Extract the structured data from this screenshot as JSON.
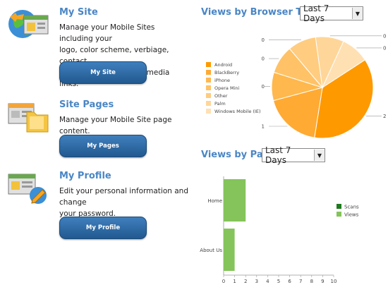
{
  "sections": [
    {
      "title": "My Site",
      "desc_lines": [
        "Manage your Mobile Sites including your",
        "logo, color scheme, verbiage, contact",
        "information, and social media links."
      ],
      "button": "My Site"
    },
    {
      "title": "Site Pages",
      "desc_lines": [
        "Manage your Mobile Site page content."
      ],
      "button": "My Pages"
    },
    {
      "title": "My Profile",
      "desc_lines": [
        "Edit your personal information and change",
        "your password."
      ],
      "button": "My Profile"
    }
  ],
  "browser_panel": {
    "title": "Views by Browser Type",
    "select_value": "Last 7 Days"
  },
  "page_panel": {
    "title": "Views by Page",
    "select_value": "Last 7 Days"
  },
  "colors": {
    "accent": "#4a86c5",
    "button": "#2a6aa6",
    "scans": "#1e7a1e",
    "views": "#84c45a"
  },
  "chart_data": [
    {
      "type": "pie",
      "categories": [
        "Android",
        "BlackBerry",
        "iPhone",
        "Opera Mini",
        "Other",
        "Palm",
        "Windows Mobile (IE)"
      ],
      "values": [
        2,
        1,
        0,
        0,
        0,
        0,
        0
      ],
      "slice_labels": [
        "2",
        "1",
        "0",
        "0",
        "0",
        "0",
        "0"
      ],
      "colors": [
        "#ff9900",
        "#ffaa33",
        "#ffb84d",
        "#ffc266",
        "#ffcc80",
        "#ffd699",
        "#ffe0b3"
      ],
      "legend": "left"
    },
    {
      "type": "bar",
      "orientation": "horizontal",
      "categories": [
        "Home",
        "About Us"
      ],
      "series": [
        {
          "name": "Scans",
          "values": [
            0,
            0
          ]
        },
        {
          "name": "Views",
          "values": [
            2,
            1
          ]
        }
      ],
      "xticks": [
        "0",
        "1",
        "2",
        "3",
        "4",
        "5",
        "6",
        "7",
        "8",
        "9",
        "10"
      ],
      "xlim": [
        0,
        10
      ],
      "legend": "right"
    }
  ]
}
